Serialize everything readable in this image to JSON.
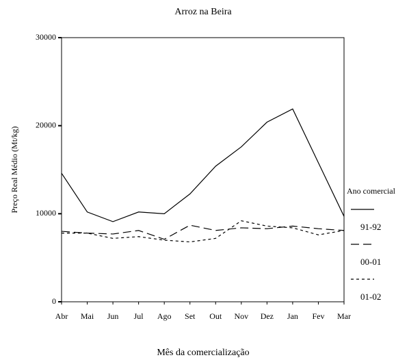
{
  "chart_data": {
    "type": "line",
    "title": "Arroz na Beira",
    "x_label": "Mês da comercialização",
    "y_label": "Preço Real Médio (Mt/kg)",
    "categories": [
      "Abr",
      "Mai",
      "Jun",
      "Jul",
      "Ago",
      "Set",
      "Out",
      "Nov",
      "Dez",
      "Jan",
      "Fev",
      "Mar"
    ],
    "ylim": [
      0,
      30000
    ],
    "yticks": [
      0,
      10000,
      20000,
      30000
    ],
    "legend_title": "Ano comercial",
    "series": [
      {
        "name": "91-92",
        "color": "#000000",
        "linestyle": "solid",
        "values": [
          14600,
          10200,
          9100,
          10200,
          10000,
          12250,
          15400,
          17600,
          20400,
          21900,
          15800,
          9700
        ]
      },
      {
        "name": "00-01",
        "color": "#000000",
        "linestyle": "long-dash",
        "values": [
          8000,
          7800,
          7700,
          8100,
          7100,
          8700,
          8100,
          8400,
          8300,
          8600,
          8300,
          8100
        ]
      },
      {
        "name": "01-02",
        "color": "#000000",
        "linestyle": "short-dash",
        "values": [
          7800,
          7800,
          7200,
          7400,
          7000,
          6800,
          7200,
          9200,
          8600,
          8400,
          7600,
          8100
        ]
      }
    ]
  }
}
